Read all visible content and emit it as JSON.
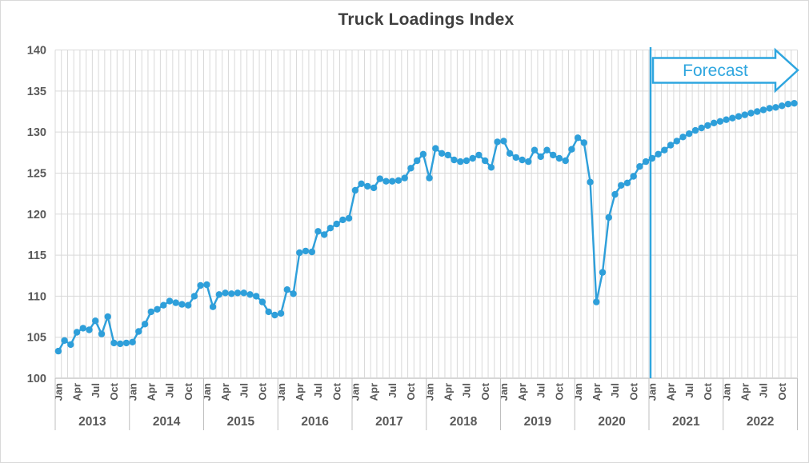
{
  "chart_data": {
    "type": "line",
    "title": "Truck Loadings Index",
    "xlabel": "",
    "ylabel": "",
    "ylim": [
      100,
      140
    ],
    "ytick_step": 5,
    "ytick_labels": [
      "100",
      "105",
      "110",
      "115",
      "120",
      "125",
      "130",
      "135",
      "140"
    ],
    "grid": "both",
    "legend": "none",
    "years": [
      "2013",
      "2014",
      "2015",
      "2016",
      "2017",
      "2018",
      "2019",
      "2020",
      "2021",
      "2022"
    ],
    "month_tick_labels": [
      "Jan",
      "Apr",
      "Jul",
      "Oct"
    ],
    "month_tick_offsets": [
      0,
      3,
      6,
      9
    ],
    "series": [
      {
        "name": "Truck Loadings Index",
        "values": [
          103.3,
          104.6,
          104.1,
          105.6,
          106.1,
          105.9,
          107.0,
          105.4,
          107.5,
          104.3,
          104.2,
          104.3,
          104.4,
          105.7,
          106.6,
          108.1,
          108.4,
          108.9,
          109.4,
          109.2,
          109.0,
          108.9,
          110.0,
          111.3,
          111.4,
          108.7,
          110.2,
          110.4,
          110.3,
          110.4,
          110.4,
          110.2,
          110.0,
          109.3,
          108.1,
          107.7,
          107.9,
          110.8,
          110.3,
          115.3,
          115.5,
          115.4,
          117.9,
          117.5,
          118.3,
          118.8,
          119.3,
          119.5,
          122.9,
          123.7,
          123.4,
          123.2,
          124.3,
          124.0,
          124.0,
          124.1,
          124.4,
          125.6,
          126.5,
          127.3,
          124.4,
          128.0,
          127.4,
          127.2,
          126.6,
          126.4,
          126.5,
          126.8,
          127.2,
          126.5,
          125.7,
          128.8,
          128.9,
          127.4,
          126.9,
          126.6,
          126.4,
          127.8,
          127.0,
          127.8,
          127.2,
          126.8,
          126.5,
          127.9,
          129.3,
          128.7,
          123.9,
          109.3,
          112.9,
          119.6,
          122.4,
          123.5,
          123.8,
          124.6,
          125.8,
          126.4,
          126.8,
          127.3,
          127.8,
          128.4,
          128.9,
          129.4,
          129.8,
          130.2,
          130.5,
          130.8,
          131.1,
          131.3,
          131.5,
          131.7,
          131.9,
          132.1,
          132.3,
          132.5,
          132.7,
          132.9,
          133.0,
          133.2,
          133.4,
          133.5
        ]
      }
    ],
    "annotations": {
      "forecast_label": "Forecast",
      "forecast_divider": "Jan 2021",
      "forecast_divider_month_index": 96
    },
    "colors": {
      "series": "#2e9fda",
      "forecast": "#2fa6df",
      "gridline": "#d9d9d9",
      "axis": "#bfbfbf",
      "labels": "#595959",
      "title": "#3f3f3f"
    }
  }
}
